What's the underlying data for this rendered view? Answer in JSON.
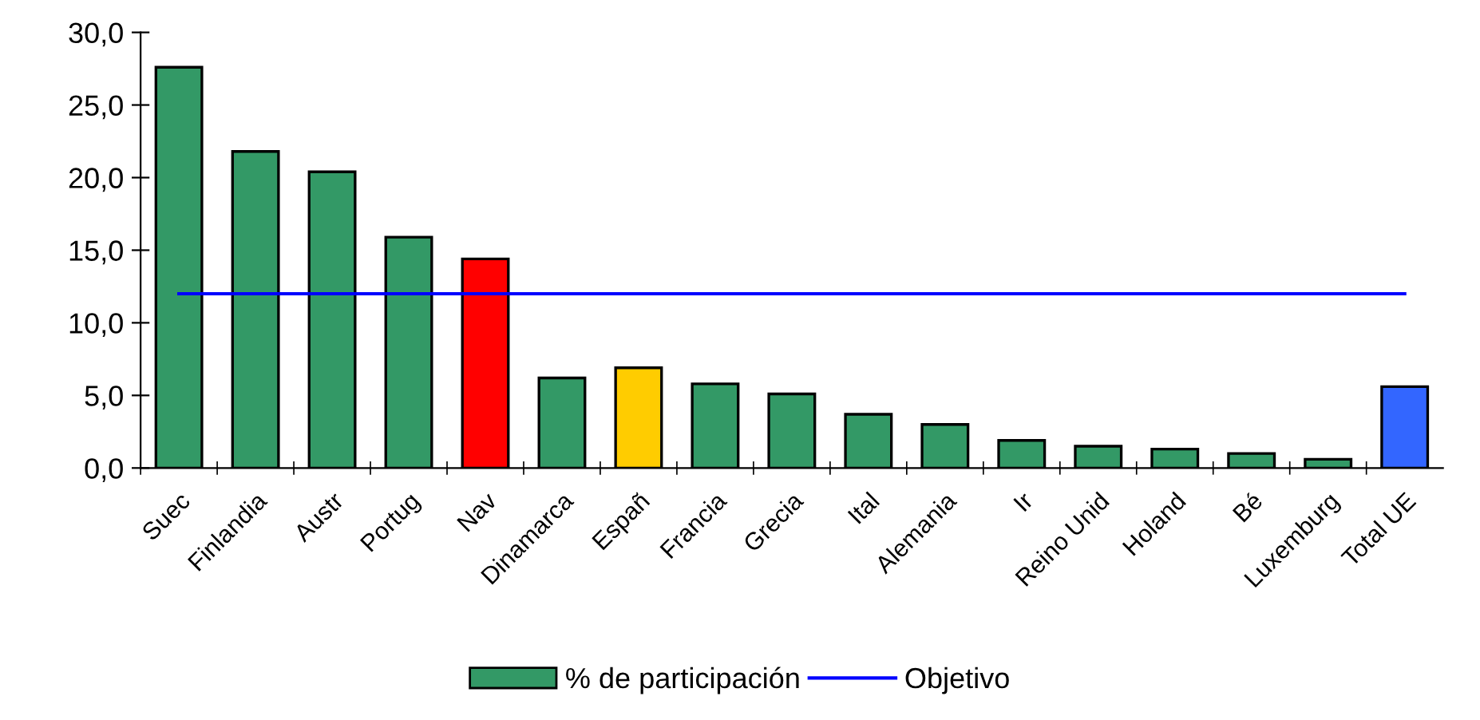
{
  "chart_data": {
    "type": "bar",
    "categories": [
      "Suec",
      "Finlandia",
      "Austr",
      "Portug",
      "Nav",
      "Dinamarca",
      "Españ",
      "Francia",
      "Grecia",
      "Ital",
      "Alemania",
      "Ir",
      "Reino Unid",
      "Holand",
      "Bé",
      "Luxemburg",
      "Total UE"
    ],
    "series": [
      {
        "name": "% de participación",
        "color": "#339966",
        "colors": [
          "#339966",
          "#339966",
          "#339966",
          "#339966",
          "#ff0000",
          "#339966",
          "#ffcc00",
          "#339966",
          "#339966",
          "#339966",
          "#339966",
          "#339966",
          "#339966",
          "#339966",
          "#339966",
          "#339966",
          "#3366ff"
        ],
        "values": [
          27.6,
          21.8,
          20.4,
          15.9,
          14.4,
          6.2,
          6.9,
          5.8,
          5.1,
          3.7,
          3.0,
          1.9,
          1.5,
          1.3,
          1.0,
          0.6,
          5.6
        ]
      },
      {
        "name": "Objetivo",
        "type": "line",
        "color": "#0000ff",
        "values": [
          12,
          12,
          12,
          12,
          12,
          12,
          12,
          12,
          12,
          12,
          12,
          12,
          12,
          12,
          12,
          12,
          12
        ]
      }
    ],
    "ylim": [
      0,
      30
    ],
    "yticks": [
      {
        "value": 0,
        "label": "0,0"
      },
      {
        "value": 5,
        "label": "5,0"
      },
      {
        "value": 10,
        "label": "10,0"
      },
      {
        "value": 15,
        "label": "15,0"
      },
      {
        "value": 20,
        "label": "20,0"
      },
      {
        "value": 25,
        "label": "25,0"
      },
      {
        "value": 30,
        "label": "30,0"
      }
    ],
    "grid": false,
    "legend": "bottom"
  }
}
